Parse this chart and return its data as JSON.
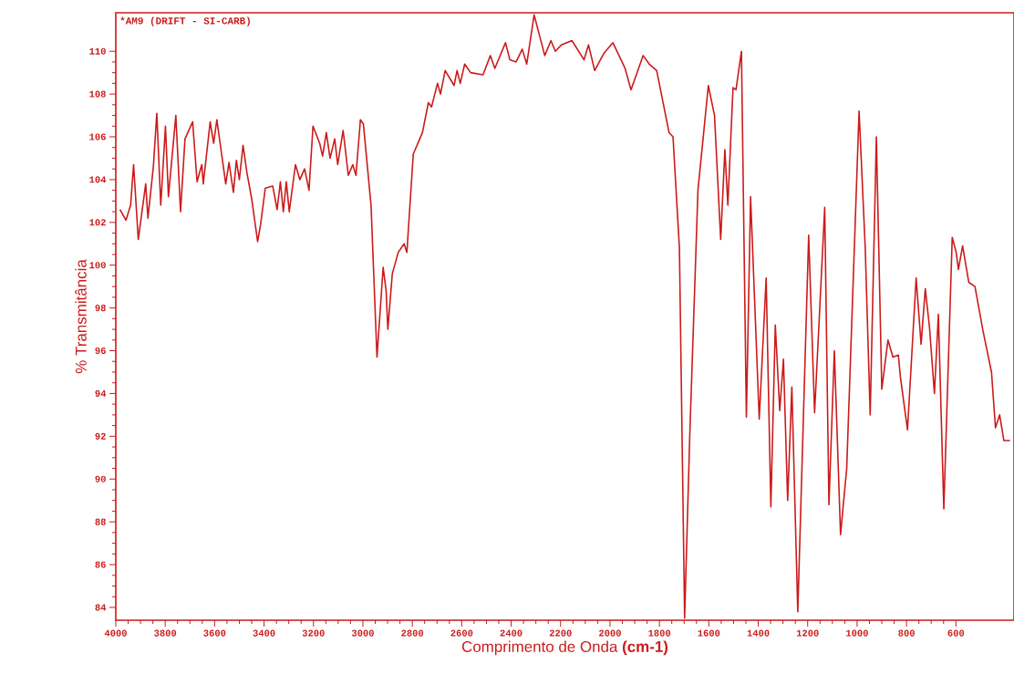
{
  "chart_data": {
    "type": "line",
    "title": "*AM9 (DRIFT - SI-CARB)",
    "xlabel": "Comprimento de Onda **(cm-1)**",
    "ylabel": "% Transmitância",
    "color": "#cc1a1a",
    "line_style": "solid",
    "xlim": [
      4000,
      365
    ],
    "ylim": [
      83.4,
      111.8
    ],
    "xticks": [
      4000,
      3800,
      3600,
      3400,
      3200,
      3000,
      2800,
      2600,
      2400,
      2200,
      2000,
      1800,
      1600,
      1400,
      1200,
      1000,
      800,
      600
    ],
    "yticks": [
      84,
      86,
      88,
      90,
      92,
      94,
      96,
      98,
      100,
      102,
      104,
      106,
      108,
      110
    ],
    "x": [
      3983,
      3959,
      3940,
      3928,
      3909,
      3879,
      3870,
      3848,
      3834,
      3818,
      3799,
      3787,
      3757,
      3738,
      3720,
      3689,
      3671,
      3652,
      3646,
      3618,
      3604,
      3591,
      3555,
      3542,
      3524,
      3512,
      3500,
      3485,
      3469,
      3450,
      3426,
      3414,
      3395,
      3365,
      3347,
      3334,
      3322,
      3310,
      3298,
      3273,
      3255,
      3236,
      3218,
      3202,
      3175,
      3163,
      3148,
      3133,
      3114,
      3102,
      3080,
      3059,
      3041,
      3028,
      3010,
      2998,
      2967,
      2943,
      2918,
      2906,
      2899,
      2881,
      2857,
      2833,
      2822,
      2796,
      2759,
      2735,
      2722,
      2698,
      2686,
      2667,
      2631,
      2619,
      2606,
      2588,
      2564,
      2514,
      2484,
      2466,
      2423,
      2405,
      2380,
      2355,
      2337,
      2307,
      2264,
      2239,
      2221,
      2197,
      2154,
      2105,
      2087,
      2062,
      2025,
      1988,
      1939,
      1915,
      1866,
      1841,
      1811,
      1761,
      1745,
      1719,
      1698,
      1677,
      1644,
      1602,
      1577,
      1552,
      1535,
      1523,
      1502,
      1490,
      1468,
      1448,
      1431,
      1396,
      1368,
      1349,
      1331,
      1313,
      1298,
      1281,
      1264,
      1240,
      1196,
      1172,
      1131,
      1114,
      1092,
      1067,
      1042,
      992,
      967,
      947,
      922,
      900,
      875,
      855,
      833,
      825,
      796,
      761,
      741,
      724,
      707,
      687,
      671,
      649,
      615,
      599,
      590,
      573,
      548,
      523,
      490,
      456,
      440,
      423,
      406,
      381
    ],
    "values": [
      102.6,
      102.1,
      102.8,
      104.7,
      101.2,
      103.8,
      102.2,
      104.6,
      107.1,
      102.8,
      106.5,
      103.2,
      107.0,
      102.5,
      105.9,
      106.7,
      103.9,
      104.7,
      103.8,
      106.7,
      105.7,
      106.8,
      103.8,
      104.8,
      103.4,
      104.9,
      104.0,
      105.6,
      104.3,
      103.1,
      101.1,
      101.9,
      103.6,
      103.7,
      102.6,
      103.9,
      102.5,
      103.9,
      102.5,
      104.7,
      104.0,
      104.5,
      103.5,
      106.5,
      105.7,
      105.1,
      106.2,
      105.0,
      105.9,
      104.7,
      106.3,
      104.2,
      104.7,
      104.2,
      106.8,
      106.6,
      102.8,
      95.7,
      99.9,
      98.8,
      97.0,
      99.6,
      100.6,
      101.0,
      100.6,
      105.2,
      106.2,
      107.6,
      107.4,
      108.5,
      108.0,
      109.1,
      108.4,
      109.1,
      108.5,
      109.4,
      109.0,
      108.9,
      109.8,
      109.2,
      110.4,
      109.6,
      109.5,
      110.1,
      109.4,
      111.7,
      109.8,
      110.5,
      110.0,
      110.3,
      110.5,
      109.6,
      110.3,
      109.1,
      109.9,
      110.4,
      109.2,
      108.2,
      109.8,
      109.4,
      109.1,
      106.2,
      106.0,
      100.8,
      83.5,
      92.1,
      103.5,
      108.4,
      107.0,
      101.2,
      105.4,
      102.8,
      108.3,
      108.2,
      110.0,
      92.9,
      103.2,
      92.8,
      99.4,
      88.7,
      97.2,
      93.2,
      95.6,
      89.0,
      94.3,
      83.8,
      101.4,
      93.1,
      102.7,
      88.8,
      96.0,
      87.4,
      90.5,
      107.2,
      100.8,
      93.0,
      106.0,
      94.2,
      96.5,
      95.7,
      95.8,
      94.8,
      92.3,
      99.4,
      96.3,
      98.9,
      97.1,
      94.0,
      97.7,
      88.6,
      101.3,
      100.6,
      99.8,
      100.9,
      99.2,
      99.0,
      96.9,
      95.0,
      92.4,
      93.0,
      91.8,
      91.8
    ]
  }
}
